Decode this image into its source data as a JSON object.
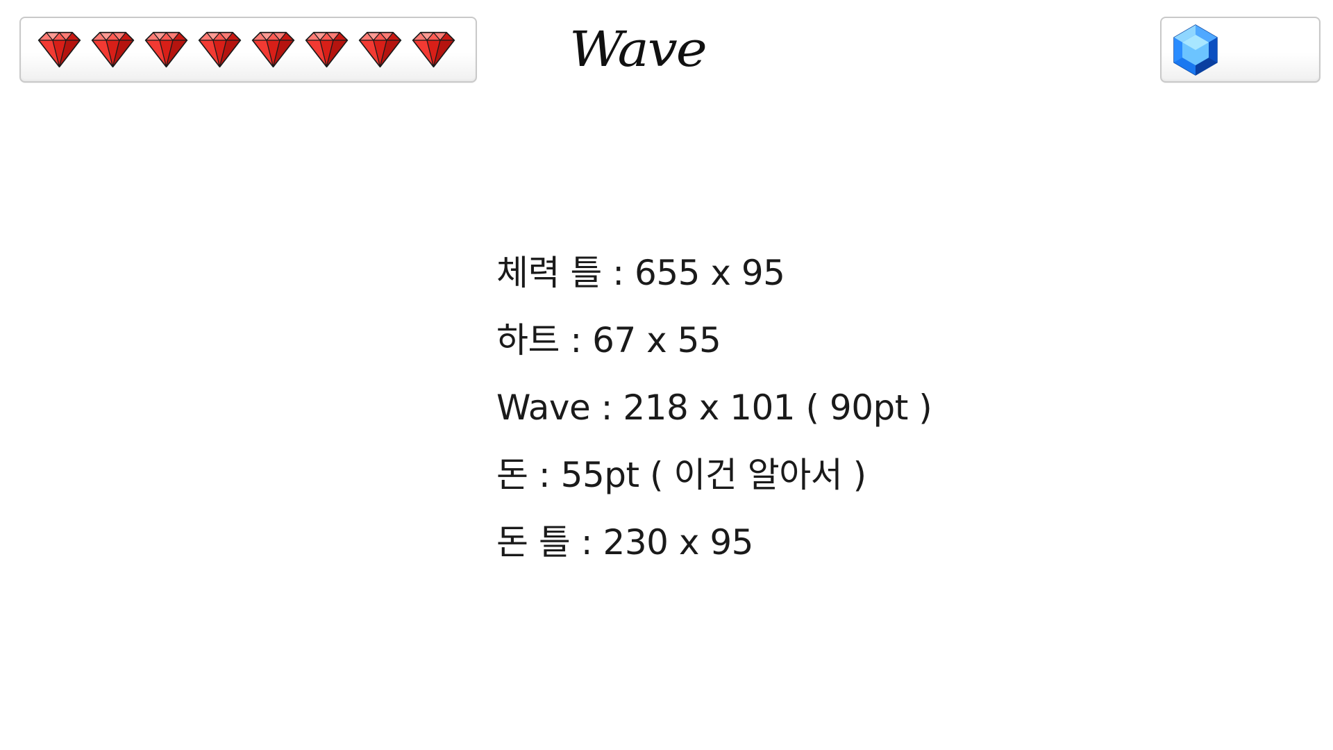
{
  "header": {
    "wave_title": "Wave",
    "hearts_count": 8,
    "heart_icon": "ruby-heart-icon",
    "money_icon": "blue-gem-icon",
    "money_value": "",
    "colors": {
      "heart_fill": "#e0201c",
      "heart_light": "#ff7b74",
      "gem_blue": "#1e88ff",
      "gem_light": "#7fd0ff",
      "panel_border": "#c9c9c9"
    }
  },
  "notes": [
    "체력 틀 : 655 x 95",
    "하트 : 67 x 55",
    "Wave : 218 x 101 ( 90pt )",
    "돈 : 55pt ( 이건 알아서 )",
    "돈 틀 : 230 x 95"
  ]
}
